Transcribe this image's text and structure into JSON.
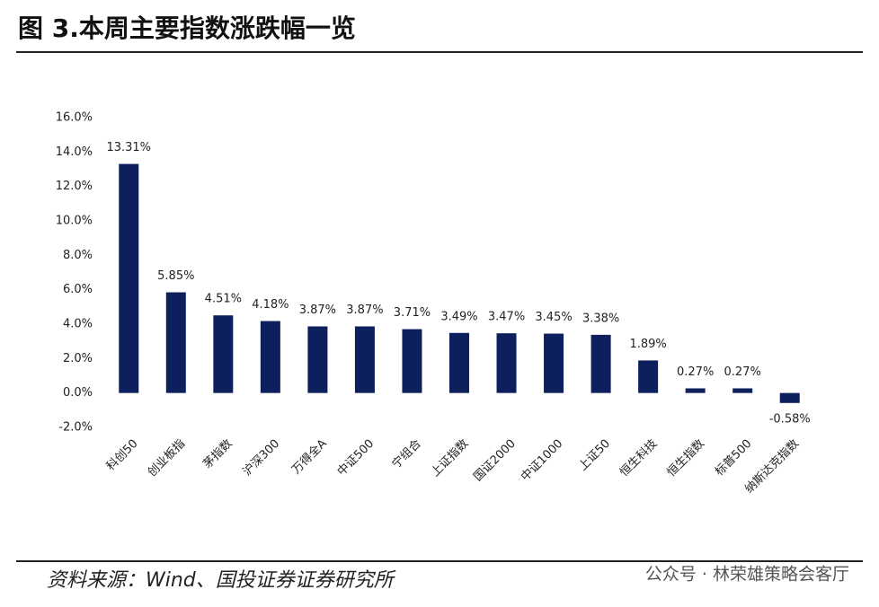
{
  "chart_data": {
    "type": "bar",
    "title": "图 3.本周主要指数涨跌幅一览",
    "source": "资料来源：Wind、国投证券证券研究所",
    "watermark": "公众号 · 林荣雄策略会客厅",
    "categories": [
      "科创50",
      "创业板指",
      "茅指数",
      "沪深300",
      "万得全A",
      "中证500",
      "宁组合",
      "上证指数",
      "国证2000",
      "中证1000",
      "上证50",
      "恒生科技",
      "恒生指数",
      "标普500",
      "纳斯达克指数"
    ],
    "values": [
      13.31,
      5.85,
      4.51,
      4.18,
      3.87,
      3.87,
      3.71,
      3.49,
      3.47,
      3.45,
      3.38,
      1.89,
      0.27,
      0.27,
      -0.58
    ],
    "value_labels": [
      "13.31%",
      "5.85%",
      "4.51%",
      "4.18%",
      "3.87%",
      "3.87%",
      "3.71%",
      "3.49%",
      "3.47%",
      "3.45%",
      "3.38%",
      "1.89%",
      "0.27%",
      "0.27%",
      "-0.58%"
    ],
    "color": "#0d1f5c",
    "ylim": [
      -2,
      16
    ],
    "yticks": [
      {
        "value": -2,
        "label": "-2.0%"
      },
      {
        "value": 0,
        "label": "0.0%"
      },
      {
        "value": 2,
        "label": "2.0%"
      },
      {
        "value": 4,
        "label": "4.0%"
      },
      {
        "value": 6,
        "label": "6.0%"
      },
      {
        "value": 8,
        "label": "8.0%"
      },
      {
        "value": 10,
        "label": "10.0%"
      },
      {
        "value": 12,
        "label": "12.0%"
      },
      {
        "value": 14,
        "label": "14.0%"
      },
      {
        "value": 16,
        "label": "16.0%"
      }
    ],
    "grid": false
  }
}
